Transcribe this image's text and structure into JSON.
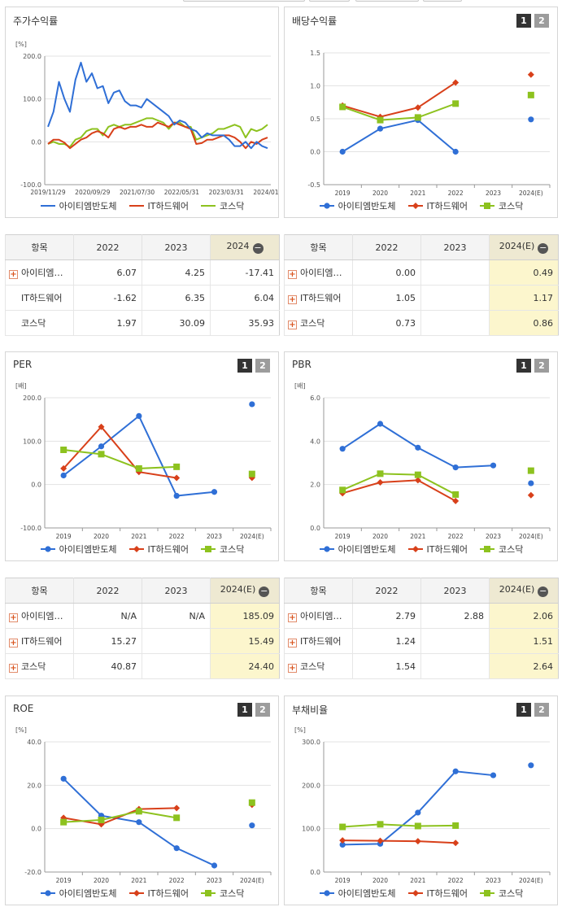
{
  "ui": {
    "btn1": "1",
    "btn2": "2",
    "col_item": "항목"
  },
  "colors": {
    "blue": "#2f6fd6",
    "red": "#d8401a",
    "green": "#8dc21f"
  },
  "legend": [
    "아이티엠반도체",
    "IT하드웨어",
    "코스닥"
  ],
  "panels": {
    "stock": {
      "title": "주가수익률"
    },
    "div": {
      "title": "배당수익률"
    },
    "per": {
      "title": "PER"
    },
    "pbr": {
      "title": "PBR"
    },
    "roe": {
      "title": "ROE"
    },
    "debt": {
      "title": "부채비율"
    }
  },
  "tables": {
    "stock": {
      "headers": [
        "항목",
        "2022",
        "2023",
        "2024"
      ],
      "rows": [
        {
          "name": "아이티엠…",
          "plus": true,
          "cells": [
            "6.07",
            "4.25",
            "-17.41"
          ]
        },
        {
          "name": "IT하드웨어",
          "plus": false,
          "cells": [
            "-1.62",
            "6.35",
            "6.04"
          ]
        },
        {
          "name": "코스닥",
          "plus": false,
          "cells": [
            "1.97",
            "30.09",
            "35.93"
          ]
        }
      ]
    },
    "div": {
      "headers": [
        "항목",
        "2022",
        "2023",
        "2024(E)"
      ],
      "rows": [
        {
          "name": "아이티엠…",
          "plus": true,
          "cells": [
            "0.00",
            "",
            "0.49"
          ]
        },
        {
          "name": "IT하드웨어",
          "plus": true,
          "cells": [
            "1.05",
            "",
            "1.17"
          ]
        },
        {
          "name": "코스닥",
          "plus": true,
          "cells": [
            "0.73",
            "",
            "0.86"
          ]
        }
      ]
    },
    "per": {
      "headers": [
        "항목",
        "2022",
        "2023",
        "2024(E)"
      ],
      "rows": [
        {
          "name": "아이티엠…",
          "plus": true,
          "cells": [
            "N/A",
            "N/A",
            "185.09"
          ]
        },
        {
          "name": "IT하드웨어",
          "plus": true,
          "cells": [
            "15.27",
            "",
            "15.49"
          ]
        },
        {
          "name": "코스닥",
          "plus": true,
          "cells": [
            "40.87",
            "",
            "24.40"
          ]
        }
      ]
    },
    "pbr": {
      "headers": [
        "항목",
        "2022",
        "2023",
        "2024(E)"
      ],
      "rows": [
        {
          "name": "아이티엠…",
          "plus": true,
          "cells": [
            "2.79",
            "2.88",
            "2.06"
          ]
        },
        {
          "name": "IT하드웨어",
          "plus": true,
          "cells": [
            "1.24",
            "",
            "1.51"
          ]
        },
        {
          "name": "코스닥",
          "plus": true,
          "cells": [
            "1.54",
            "",
            "2.64"
          ]
        }
      ]
    }
  },
  "chart_data": [
    {
      "id": "stock",
      "type": "line",
      "title": "주가수익률",
      "unit": "[%]",
      "ylim": [
        -100,
        200
      ],
      "yticks": [
        "-100.0",
        "0.0",
        "100.0",
        "200.0"
      ],
      "xticklabels": [
        "2019/11/29",
        "2020/09/29",
        "2021/07/30",
        "2022/05/31",
        "2023/03/31",
        "2024/01/31"
      ],
      "series": [
        {
          "name": "아이티엠반도체",
          "color": "#2f6fd6",
          "values": [
            35,
            70,
            140,
            100,
            70,
            145,
            185,
            140,
            160,
            125,
            130,
            90,
            115,
            120,
            95,
            85,
            85,
            80,
            100,
            90,
            80,
            70,
            60,
            40,
            50,
            45,
            30,
            25,
            10,
            20,
            15,
            15,
            15,
            5,
            -10,
            -10,
            0,
            -15,
            0,
            -10,
            -15
          ]
        },
        {
          "name": "IT하드웨어",
          "color": "#d8401a",
          "values": [
            -5,
            5,
            5,
            -2,
            -15,
            -5,
            5,
            10,
            20,
            25,
            20,
            10,
            30,
            35,
            30,
            35,
            35,
            40,
            35,
            35,
            45,
            40,
            35,
            45,
            40,
            35,
            30,
            -5,
            -3,
            5,
            5,
            10,
            15,
            15,
            10,
            0,
            -15,
            0,
            -5,
            5,
            10
          ]
        },
        {
          "name": "코스닥",
          "color": "#8dc21f",
          "values": [
            -5,
            0,
            -5,
            -5,
            -12,
            5,
            10,
            25,
            30,
            30,
            15,
            35,
            40,
            35,
            40,
            40,
            45,
            50,
            55,
            55,
            50,
            45,
            30,
            45,
            45,
            35,
            35,
            5,
            10,
            15,
            20,
            30,
            30,
            35,
            40,
            35,
            10,
            30,
            25,
            30,
            40
          ]
        }
      ]
    },
    {
      "id": "div",
      "type": "line",
      "title": "배당수익률",
      "unit": "",
      "ylim": [
        -0.5,
        1.5
      ],
      "yticks": [
        "-0.5",
        "0.0",
        "0.5",
        "1.0",
        "1.5"
      ],
      "categories": [
        "2019",
        "2020",
        "2021",
        "2022",
        "2023",
        "2024(E)"
      ],
      "series": [
        {
          "name": "아이티엠반도체",
          "color": "#2f6fd6",
          "marker": "circle",
          "values": [
            0.0,
            0.35,
            0.48,
            0.0,
            null,
            0.49
          ]
        },
        {
          "name": "IT하드웨어",
          "color": "#d8401a",
          "marker": "diamond",
          "values": [
            0.7,
            0.53,
            0.67,
            1.05,
            null,
            1.17
          ]
        },
        {
          "name": "코스닥",
          "color": "#8dc21f",
          "marker": "square",
          "values": [
            0.68,
            0.48,
            0.52,
            0.73,
            null,
            0.86
          ]
        }
      ]
    },
    {
      "id": "per",
      "type": "line",
      "title": "PER",
      "unit": "[배]",
      "ylim": [
        -100,
        200
      ],
      "yticks": [
        "-100.0",
        "0.0",
        "100.0",
        "200.0"
      ],
      "categories": [
        "2019",
        "2020",
        "2021",
        "2022",
        "2023",
        "2024(E)"
      ],
      "series": [
        {
          "name": "아이티엠반도체",
          "color": "#2f6fd6",
          "marker": "circle",
          "values": [
            21,
            88,
            158,
            -26,
            -17,
            185.09
          ]
        },
        {
          "name": "IT하드웨어",
          "color": "#d8401a",
          "marker": "diamond",
          "values": [
            37,
            133,
            29,
            15.27,
            null,
            15.49
          ]
        },
        {
          "name": "코스닥",
          "color": "#8dc21f",
          "marker": "square",
          "values": [
            80,
            70,
            37,
            40.87,
            null,
            24.4
          ]
        }
      ]
    },
    {
      "id": "pbr",
      "type": "line",
      "title": "PBR",
      "unit": "[배]",
      "ylim": [
        0,
        6
      ],
      "yticks": [
        "0.0",
        "2.0",
        "4.0",
        "6.0"
      ],
      "categories": [
        "2019",
        "2020",
        "2021",
        "2022",
        "2023",
        "2024(E)"
      ],
      "series": [
        {
          "name": "아이티엠반도체",
          "color": "#2f6fd6",
          "marker": "circle",
          "values": [
            3.65,
            4.8,
            3.7,
            2.79,
            2.88,
            2.06
          ]
        },
        {
          "name": "IT하드웨어",
          "color": "#d8401a",
          "marker": "diamond",
          "values": [
            1.6,
            2.1,
            2.2,
            1.24,
            null,
            1.51
          ]
        },
        {
          "name": "코스닥",
          "color": "#8dc21f",
          "marker": "square",
          "values": [
            1.75,
            2.5,
            2.45,
            1.54,
            null,
            2.64
          ]
        }
      ]
    },
    {
      "id": "roe",
      "type": "line",
      "title": "ROE",
      "unit": "[%]",
      "ylim": [
        -20,
        40
      ],
      "yticks": [
        "-20.0",
        "0.0",
        "20.0",
        "40.0"
      ],
      "categories": [
        "2019",
        "2020",
        "2021",
        "2022",
        "2023",
        "2024(E)"
      ],
      "series": [
        {
          "name": "아이티엠반도체",
          "color": "#2f6fd6",
          "marker": "circle",
          "values": [
            23,
            6,
            3,
            -9,
            -17,
            1.5
          ]
        },
        {
          "name": "IT하드웨어",
          "color": "#d8401a",
          "marker": "diamond",
          "values": [
            5,
            2,
            9,
            9.5,
            null,
            11
          ]
        },
        {
          "name": "코스닥",
          "color": "#8dc21f",
          "marker": "square",
          "values": [
            3,
            4,
            8,
            5,
            null,
            12
          ]
        }
      ]
    },
    {
      "id": "debt",
      "type": "line",
      "title": "부채비율",
      "unit": "[%]",
      "ylim": [
        0,
        300
      ],
      "yticks": [
        "0.0",
        "100.0",
        "200.0",
        "300.0"
      ],
      "categories": [
        "2019",
        "2020",
        "2021",
        "2022",
        "2023",
        "2024(E)"
      ],
      "series": [
        {
          "name": "아이티엠반도체",
          "color": "#2f6fd6",
          "marker": "circle",
          "values": [
            63,
            65,
            137,
            232,
            223,
            246
          ]
        },
        {
          "name": "IT하드웨어",
          "color": "#d8401a",
          "marker": "diamond",
          "values": [
            73,
            72,
            71,
            67,
            null,
            null
          ]
        },
        {
          "name": "코스닥",
          "color": "#8dc21f",
          "marker": "square",
          "values": [
            104,
            110,
            106,
            107,
            null,
            null
          ]
        }
      ]
    }
  ]
}
